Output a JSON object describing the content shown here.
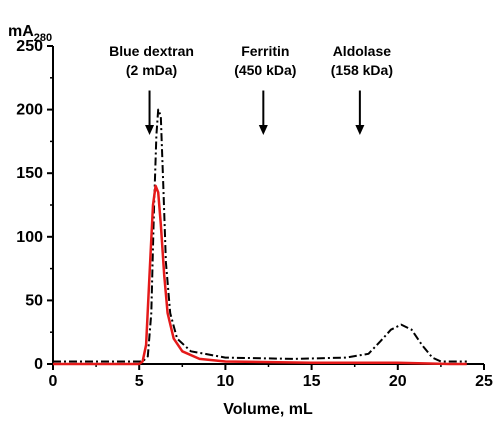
{
  "chart_data": {
    "type": "line",
    "title": "",
    "xlabel": "Volume, mL",
    "ylabel_main": "mA",
    "ylabel_sub": "280",
    "xlim": [
      0,
      25
    ],
    "ylim": [
      0,
      250
    ],
    "xticks": [
      0,
      5,
      10,
      15,
      20,
      25
    ],
    "yticks": [
      0,
      50,
      100,
      150,
      200,
      250
    ],
    "grid": false,
    "legend": "none",
    "series": [
      {
        "color": "#000000",
        "style": "dashed-dotted",
        "points": [
          [
            0,
            2
          ],
          [
            5.2,
            2
          ],
          [
            5.5,
            6
          ],
          [
            5.7,
            40
          ],
          [
            5.85,
            120
          ],
          [
            6.0,
            180
          ],
          [
            6.1,
            200
          ],
          [
            6.25,
            195
          ],
          [
            6.4,
            140
          ],
          [
            6.55,
            80
          ],
          [
            6.8,
            40
          ],
          [
            7.2,
            20
          ],
          [
            8,
            10
          ],
          [
            10,
            5
          ],
          [
            14,
            4
          ],
          [
            17,
            5
          ],
          [
            18.3,
            8
          ],
          [
            19,
            18
          ],
          [
            19.6,
            27
          ],
          [
            20.2,
            31
          ],
          [
            20.8,
            27
          ],
          [
            21.4,
            15
          ],
          [
            22,
            5
          ],
          [
            22.5,
            2
          ],
          [
            24,
            2
          ]
        ]
      },
      {
        "color": "#e51a1a",
        "style": "solid",
        "points": [
          [
            0,
            0
          ],
          [
            5.0,
            0
          ],
          [
            5.2,
            2
          ],
          [
            5.4,
            15
          ],
          [
            5.6,
            70
          ],
          [
            5.8,
            125
          ],
          [
            5.95,
            140
          ],
          [
            6.1,
            135
          ],
          [
            6.25,
            110
          ],
          [
            6.45,
            70
          ],
          [
            6.65,
            40
          ],
          [
            7,
            20
          ],
          [
            7.5,
            10
          ],
          [
            8.5,
            4
          ],
          [
            10,
            2
          ],
          [
            15,
            1
          ],
          [
            20,
            1
          ],
          [
            23,
            0
          ],
          [
            24,
            0
          ]
        ]
      }
    ],
    "annotations": [
      {
        "line1": "Blue dextran",
        "line2": "(2 mDa)",
        "x": 5.6,
        "y_from": 215,
        "y_to": 180
      },
      {
        "line1": "Ferritin",
        "line2": "(450 kDa)",
        "x": 12.2,
        "y_from": 215,
        "y_to": 180
      },
      {
        "line1": "Aldolase",
        "line2": "(158 kDa)",
        "x": 17.8,
        "y_from": 215,
        "y_to": 180
      }
    ]
  }
}
